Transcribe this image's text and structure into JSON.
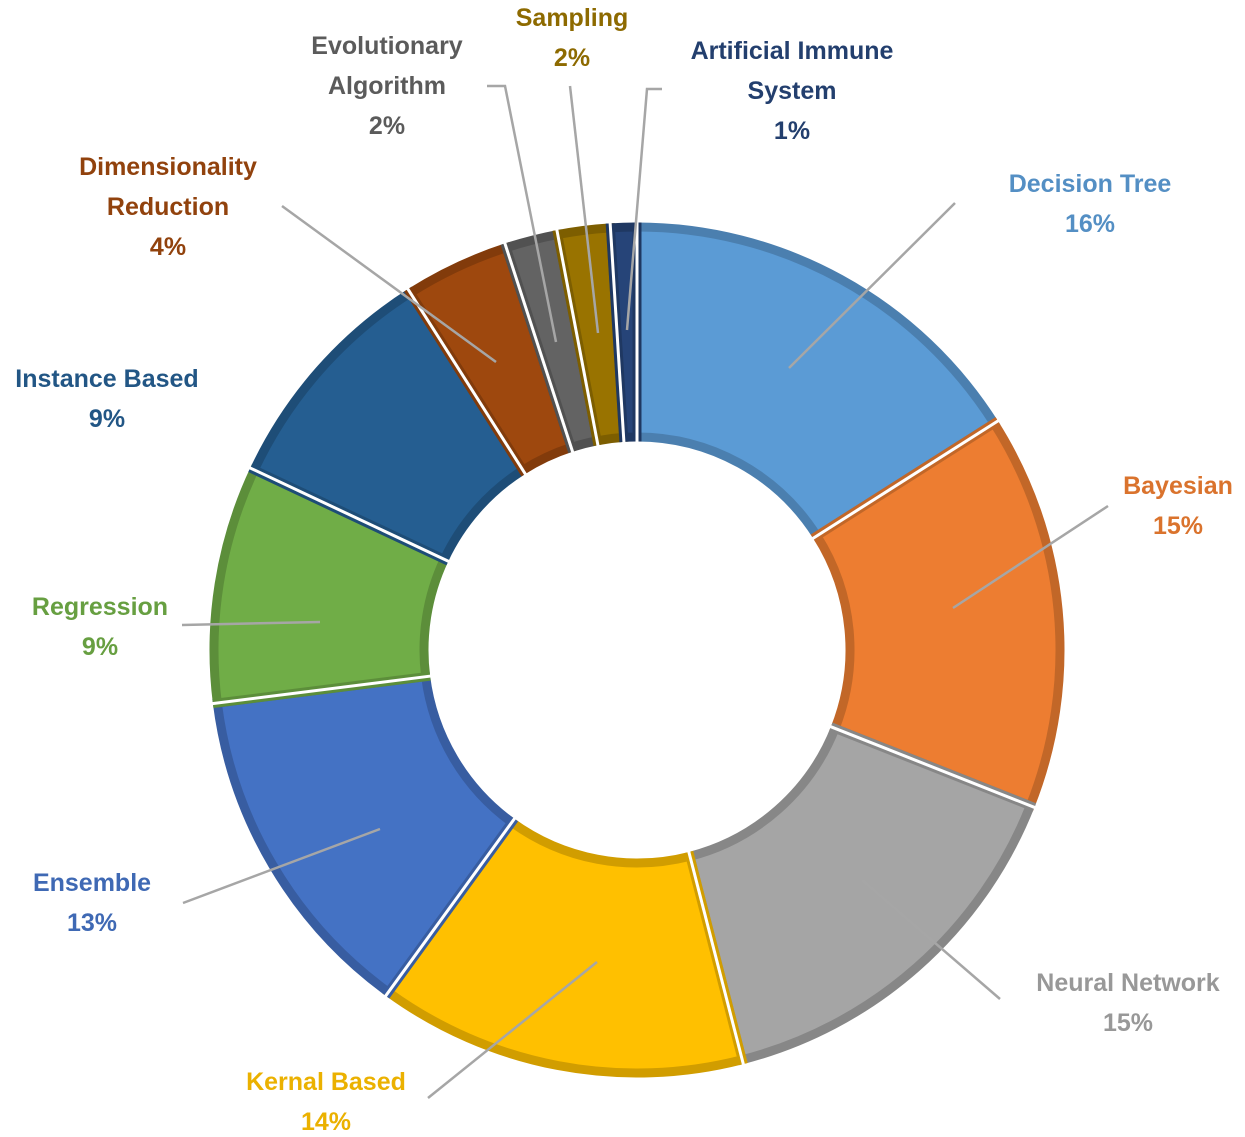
{
  "chart_data": {
    "type": "pie",
    "variant": "donut",
    "title": "",
    "slices": [
      {
        "name": "Decision Tree",
        "label_lines": [
          "Decision Tree"
        ],
        "value": 16,
        "value_label": "16%",
        "color": "#5B9BD5"
      },
      {
        "name": "Bayesian",
        "label_lines": [
          "Bayesian"
        ],
        "value": 15,
        "value_label": "15%",
        "color": "#ED7D31"
      },
      {
        "name": "Neural Network",
        "label_lines": [
          "Neural Network"
        ],
        "value": 15,
        "value_label": "15%",
        "color": "#A5A5A5"
      },
      {
        "name": "Kernal Based",
        "label_lines": [
          "Kernal Based"
        ],
        "value": 14,
        "value_label": "14%",
        "color": "#FFC000"
      },
      {
        "name": "Ensemble",
        "label_lines": [
          "Ensemble"
        ],
        "value": 13,
        "value_label": "13%",
        "color": "#4472C4"
      },
      {
        "name": "Regression",
        "label_lines": [
          "Regression"
        ],
        "value": 9,
        "value_label": "9%",
        "color": "#70AD47"
      },
      {
        "name": "Instance Based",
        "label_lines": [
          "Instance Based"
        ],
        "value": 9,
        "value_label": "9%",
        "color": "#255E91"
      },
      {
        "name": "Dimensionality Reduction",
        "label_lines": [
          "Dimensionality",
          "Reduction"
        ],
        "value": 4,
        "value_label": "4%",
        "color": "#9E480E"
      },
      {
        "name": "Evolutionary Algorithm",
        "label_lines": [
          "Evolutionary",
          "Algorithm"
        ],
        "value": 2,
        "value_label": "2%",
        "color": "#636363"
      },
      {
        "name": "Sampling",
        "label_lines": [
          "Sampling"
        ],
        "value": 2,
        "value_label": "2%",
        "color": "#997300"
      },
      {
        "name": "Artificial Immune System",
        "label_lines": [
          "Artificial Immune",
          "System"
        ],
        "value": 1,
        "value_label": "1%",
        "color": "#264478"
      }
    ]
  }
}
